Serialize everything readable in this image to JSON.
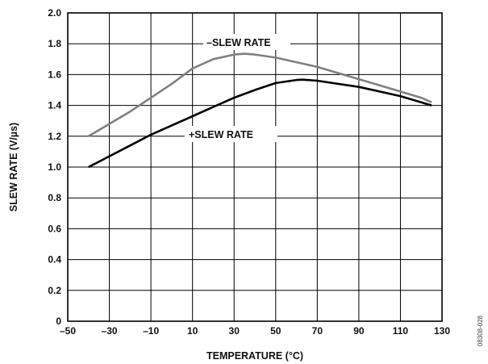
{
  "chart_data": {
    "type": "line",
    "xlabel": "TEMPERATURE (°C)",
    "ylabel": "SLEW RATE (V/µs)",
    "xlim": [
      -50,
      130
    ],
    "ylim": [
      0,
      2.0
    ],
    "xticks": [
      "–50",
      "–30",
      "–10",
      "10",
      "30",
      "50",
      "70",
      "90",
      "110",
      "130"
    ],
    "yticks": [
      "0",
      "0.2",
      "0.4",
      "0.6",
      "0.8",
      "1.0",
      "1.2",
      "1.4",
      "1.6",
      "1.8",
      "2.0"
    ],
    "grid": true,
    "figure_id": "08308-028",
    "series": [
      {
        "name": "–SLEW RATE",
        "color": "#808080",
        "x": [
          -40,
          -30,
          -20,
          -10,
          0,
          10,
          20,
          30,
          35,
          40,
          50,
          60,
          70,
          80,
          90,
          100,
          110,
          120,
          125
        ],
        "y": [
          1.2,
          1.28,
          1.36,
          1.45,
          1.54,
          1.64,
          1.7,
          1.73,
          1.735,
          1.73,
          1.71,
          1.68,
          1.65,
          1.61,
          1.57,
          1.53,
          1.49,
          1.45,
          1.42
        ]
      },
      {
        "name": "+SLEW RATE",
        "color": "#000000",
        "x": [
          -40,
          -30,
          -20,
          -10,
          0,
          10,
          20,
          30,
          40,
          50,
          60,
          63,
          70,
          80,
          90,
          100,
          110,
          120,
          125
        ],
        "y": [
          1.0,
          1.07,
          1.14,
          1.21,
          1.27,
          1.33,
          1.39,
          1.45,
          1.5,
          1.545,
          1.565,
          1.567,
          1.56,
          1.54,
          1.52,
          1.49,
          1.46,
          1.42,
          1.4
        ]
      }
    ]
  }
}
